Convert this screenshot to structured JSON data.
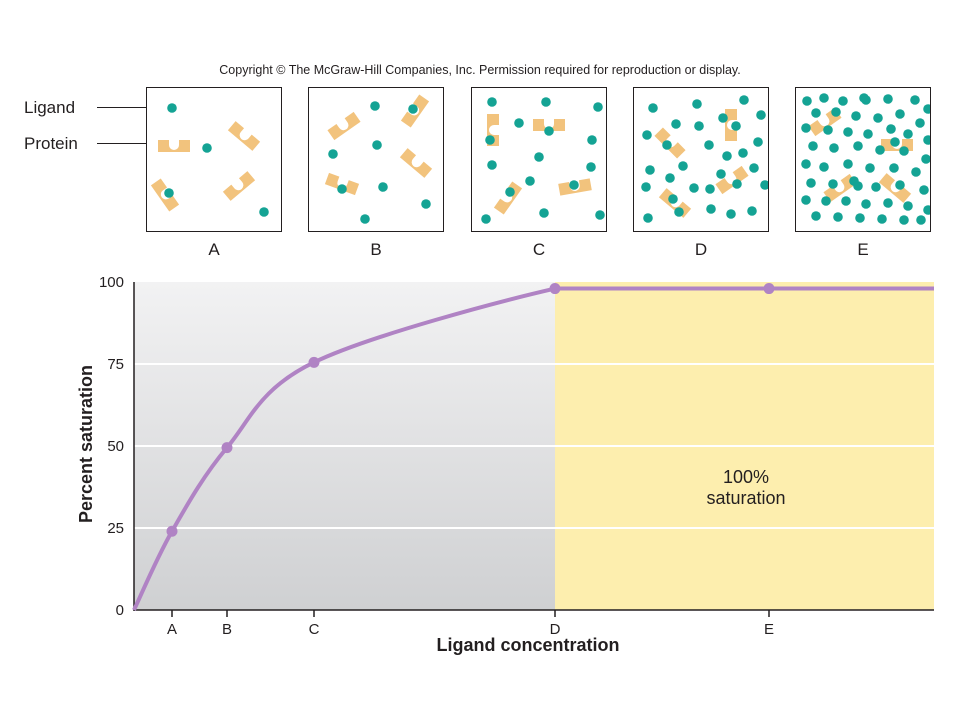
{
  "copyright": "Copyright © The McGraw-Hill Companies, Inc. Permission required for reproduction or display.",
  "legend_labels": {
    "ligand": "Ligand",
    "protein": "Protein"
  },
  "colors": {
    "ligand": "#14a394",
    "protein": "#f2c37d",
    "curve": "#b083c4",
    "saturation_region": "#fdeeae",
    "plot_background_top": "#f2f2f3",
    "plot_background_bottom": "#cfd0d2"
  },
  "panels": [
    {
      "label": "A"
    },
    {
      "label": "B"
    },
    {
      "label": "C"
    },
    {
      "label": "D"
    },
    {
      "label": "E"
    }
  ],
  "chart_data": {
    "type": "line",
    "xlabel": "Ligand concentration",
    "ylabel": "Percent saturation",
    "ylim": [
      0,
      100
    ],
    "yticks": [
      0,
      25,
      50,
      75,
      100
    ],
    "xticks": [
      "A",
      "B",
      "C",
      "D",
      "E"
    ],
    "grid": true,
    "series": [
      {
        "points": [
          {
            "x": "A",
            "y": 24
          },
          {
            "x": "B",
            "y": 49.5
          },
          {
            "x": "C",
            "y": 75.5
          },
          {
            "x": "D",
            "y": 98
          },
          {
            "x": "E",
            "y": 98
          }
        ]
      }
    ],
    "annotation": {
      "line1": "100%",
      "line2": "saturation"
    }
  }
}
